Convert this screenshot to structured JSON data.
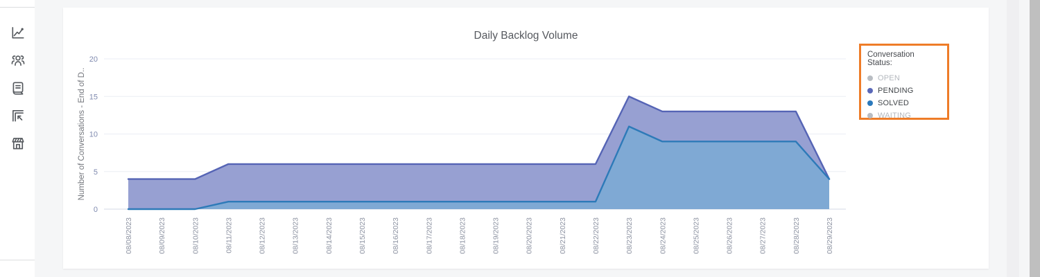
{
  "sidebar": {
    "icons": [
      {
        "name": "line-chart-icon"
      },
      {
        "name": "people-group-icon"
      },
      {
        "name": "book-icon"
      },
      {
        "name": "corner-arrow-icon"
      },
      {
        "name": "storefront-icon"
      }
    ]
  },
  "chart": {
    "title": "Daily Backlog Volume"
  },
  "legend": {
    "title": "Conversation Status:",
    "border_color": "#ee7c28",
    "items": [
      {
        "label": "OPEN",
        "color": "#b9bdc3",
        "active": false
      },
      {
        "label": "PENDING",
        "color": "#5a68b8",
        "active": true
      },
      {
        "label": "SOLVED",
        "color": "#2a79bc",
        "active": true
      },
      {
        "label": "WAITING",
        "color": "#b9bdc3",
        "active": false
      }
    ]
  },
  "chart_data": {
    "type": "area",
    "stacked": true,
    "title": "Daily Backlog Volume",
    "ylabel": "Number of Conversations - End of D..",
    "ylim": [
      0,
      20
    ],
    "yticks": [
      0,
      5,
      10,
      15,
      20
    ],
    "grid": true,
    "legend_position": "right",
    "categories": [
      "08/08/2023",
      "08/09/2023",
      "08/10/2023",
      "08/11/2023",
      "08/12/2023",
      "08/13/2023",
      "08/14/2023",
      "08/15/2023",
      "08/16/2023",
      "08/17/2023",
      "08/18/2023",
      "08/19/2023",
      "08/20/2023",
      "08/21/2023",
      "08/22/2023",
      "08/23/2023",
      "08/24/2023",
      "08/25/2023",
      "08/26/2023",
      "08/27/2023",
      "08/28/2023",
      "08/29/2023"
    ],
    "series": [
      {
        "name": "SOLVED",
        "values": [
          0,
          0,
          0,
          1,
          1,
          1,
          1,
          1,
          1,
          1,
          1,
          1,
          1,
          1,
          1,
          11,
          9,
          9,
          9,
          9,
          9,
          4
        ],
        "line_color": "#2d7ab8",
        "fill_color": "#7fa9d4"
      },
      {
        "name": "PENDING",
        "values": [
          4,
          4,
          4,
          5,
          5,
          5,
          5,
          5,
          5,
          5,
          5,
          5,
          5,
          5,
          5,
          4,
          4,
          4,
          4,
          4,
          4,
          0
        ],
        "line_color": "#5564b5",
        "fill_color": "#97a0d2"
      }
    ],
    "totals": [
      4,
      4,
      4,
      6,
      6,
      6,
      6,
      6,
      6,
      6,
      6,
      6,
      6,
      6,
      6,
      15,
      13,
      13,
      13,
      13,
      13,
      4
    ],
    "tick_color_y": "#7f8aaf",
    "tick_color_x": "#8c92a1",
    "grid_color": "#ebedf4",
    "axis_color": "#dce0eb",
    "ylabel_color": "#73767c"
  }
}
